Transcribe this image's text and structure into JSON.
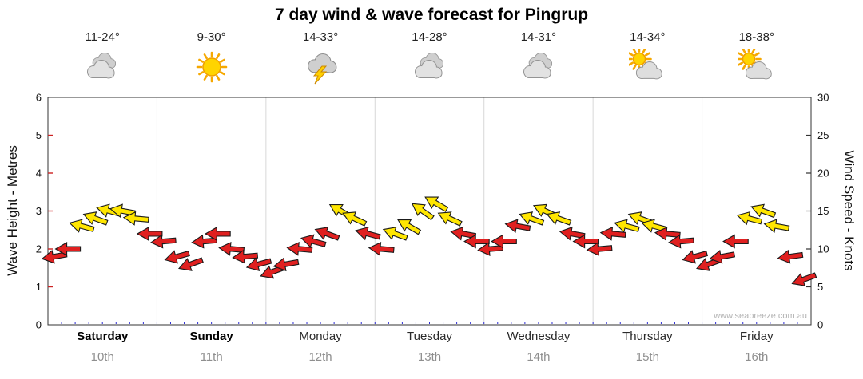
{
  "title": "7 day wind & wave forecast for Pingrup",
  "watermark": "www.seabreeze.com.au",
  "days": [
    {
      "name": "Saturday",
      "date": "10th",
      "temp": "11-24°",
      "icon": "cloudy",
      "bold": true
    },
    {
      "name": "Sunday",
      "date": "11th",
      "temp": "9-30°",
      "icon": "sunny",
      "bold": true
    },
    {
      "name": "Monday",
      "date": "12th",
      "temp": "14-33°",
      "icon": "thunderstorm",
      "bold": false
    },
    {
      "name": "Tuesday",
      "date": "13th",
      "temp": "14-28°",
      "icon": "cloudy",
      "bold": false
    },
    {
      "name": "Wednesday",
      "date": "14th",
      "temp": "14-31°",
      "icon": "cloudy",
      "bold": false
    },
    {
      "name": "Thursday",
      "date": "15th",
      "temp": "14-34°",
      "icon": "partly-sunny",
      "bold": false
    },
    {
      "name": "Friday",
      "date": "16th",
      "temp": "18-38°",
      "icon": "partly-sunny",
      "bold": false
    }
  ],
  "chart_data": {
    "type": "wind-arrows",
    "title": "7 day wind & wave forecast for Pingrup",
    "categories": [
      "Saturday 10th",
      "Sunday 11th",
      "Monday 12th",
      "Tuesday 13th",
      "Wednesday 14th",
      "Thursday 15th",
      "Friday 16th"
    ],
    "point_interval_hours": 3,
    "y_left": {
      "label": "Wave Height - Metres",
      "min": 0,
      "max": 6,
      "ticks": [
        0,
        1,
        2,
        3,
        4,
        5,
        6
      ]
    },
    "y_right": {
      "label": "Wind Speed - Knots",
      "min": 0,
      "max": 30,
      "ticks": [
        0,
        5,
        10,
        15,
        20,
        25,
        30
      ]
    },
    "arrow_colors": {
      "red": "#e02020",
      "yellow": "#ffe600"
    },
    "points_format": [
      "day_index",
      "slot_3h",
      "wind_knots",
      "arrow_rotation_deg_cw_from_east",
      "color"
    ],
    "points": [
      [
        0,
        0,
        9,
        170,
        "red"
      ],
      [
        0,
        1,
        10,
        180,
        "red"
      ],
      [
        0,
        2,
        13,
        195,
        "yellow"
      ],
      [
        0,
        3,
        14,
        200,
        "yellow"
      ],
      [
        0,
        4,
        15,
        195,
        "yellow"
      ],
      [
        0,
        5,
        15,
        190,
        "yellow"
      ],
      [
        0,
        6,
        14,
        185,
        "yellow"
      ],
      [
        0,
        7,
        12,
        180,
        "red"
      ],
      [
        1,
        0,
        11,
        175,
        "red"
      ],
      [
        1,
        1,
        9,
        165,
        "red"
      ],
      [
        1,
        2,
        8,
        160,
        "red"
      ],
      [
        1,
        3,
        11,
        175,
        "red"
      ],
      [
        1,
        4,
        12,
        180,
        "red"
      ],
      [
        1,
        5,
        10,
        185,
        "red"
      ],
      [
        1,
        6,
        9,
        175,
        "red"
      ],
      [
        1,
        7,
        8,
        165,
        "red"
      ],
      [
        2,
        0,
        7,
        160,
        "red"
      ],
      [
        2,
        1,
        8,
        170,
        "red"
      ],
      [
        2,
        2,
        10,
        185,
        "red"
      ],
      [
        2,
        3,
        11,
        195,
        "red"
      ],
      [
        2,
        4,
        12,
        200,
        "red"
      ],
      [
        2,
        5,
        15,
        210,
        "yellow"
      ],
      [
        2,
        6,
        14,
        205,
        "yellow"
      ],
      [
        2,
        7,
        12,
        195,
        "red"
      ],
      [
        3,
        0,
        10,
        185,
        "red"
      ],
      [
        3,
        1,
        12,
        200,
        "yellow"
      ],
      [
        3,
        2,
        13,
        210,
        "yellow"
      ],
      [
        3,
        3,
        15,
        215,
        "yellow"
      ],
      [
        3,
        4,
        16,
        210,
        "yellow"
      ],
      [
        3,
        5,
        14,
        205,
        "yellow"
      ],
      [
        3,
        6,
        12,
        190,
        "red"
      ],
      [
        3,
        7,
        11,
        180,
        "red"
      ],
      [
        4,
        0,
        10,
        175,
        "red"
      ],
      [
        4,
        1,
        11,
        180,
        "red"
      ],
      [
        4,
        2,
        13,
        190,
        "red"
      ],
      [
        4,
        3,
        14,
        200,
        "yellow"
      ],
      [
        4,
        4,
        15,
        205,
        "yellow"
      ],
      [
        4,
        5,
        14,
        200,
        "yellow"
      ],
      [
        4,
        6,
        12,
        190,
        "red"
      ],
      [
        4,
        7,
        11,
        180,
        "red"
      ],
      [
        5,
        0,
        10,
        175,
        "red"
      ],
      [
        5,
        1,
        12,
        185,
        "red"
      ],
      [
        5,
        2,
        13,
        195,
        "yellow"
      ],
      [
        5,
        3,
        14,
        200,
        "yellow"
      ],
      [
        5,
        4,
        13,
        195,
        "yellow"
      ],
      [
        5,
        5,
        12,
        185,
        "red"
      ],
      [
        5,
        6,
        11,
        175,
        "red"
      ],
      [
        5,
        7,
        9,
        165,
        "red"
      ],
      [
        6,
        0,
        8,
        160,
        "red"
      ],
      [
        6,
        1,
        9,
        170,
        "red"
      ],
      [
        6,
        2,
        11,
        180,
        "red"
      ],
      [
        6,
        3,
        14,
        195,
        "yellow"
      ],
      [
        6,
        4,
        15,
        200,
        "yellow"
      ],
      [
        6,
        5,
        13,
        190,
        "yellow"
      ],
      [
        6,
        6,
        9,
        172,
        "red"
      ],
      [
        6,
        7,
        6,
        160,
        "red"
      ]
    ]
  }
}
